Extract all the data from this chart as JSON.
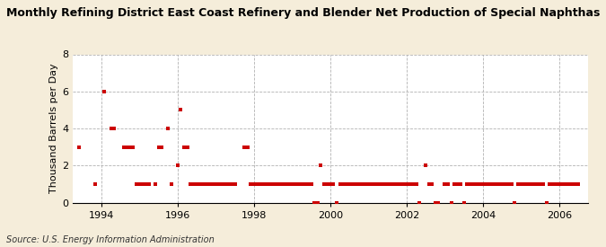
{
  "title": "Monthly Refining District East Coast Refinery and Blender Net Production of Special Naphthas",
  "ylabel": "Thousand Barrels per Day",
  "source": "Source: U.S. Energy Information Administration",
  "background_color": "#f5edda",
  "plot_bg_color": "#ffffff",
  "marker_color": "#cc0000",
  "marker_size": 5,
  "ylim": [
    0,
    8
  ],
  "yticks": [
    0,
    2,
    4,
    6,
    8
  ],
  "xlim_start": 1993.25,
  "xlim_end": 2006.75,
  "xticks": [
    1994,
    1996,
    1998,
    2000,
    2002,
    2004,
    2006
  ],
  "data_points": [
    [
      1993.42,
      3
    ],
    [
      1993.83,
      1
    ],
    [
      1994.08,
      6
    ],
    [
      1994.25,
      4
    ],
    [
      1994.33,
      4
    ],
    [
      1994.58,
      3
    ],
    [
      1994.67,
      3
    ],
    [
      1994.75,
      3
    ],
    [
      1994.83,
      3
    ],
    [
      1994.92,
      1
    ],
    [
      1995.0,
      1
    ],
    [
      1995.08,
      1
    ],
    [
      1995.17,
      1
    ],
    [
      1995.25,
      1
    ],
    [
      1995.42,
      1
    ],
    [
      1995.5,
      3
    ],
    [
      1995.58,
      3
    ],
    [
      1995.75,
      4
    ],
    [
      1995.83,
      1
    ],
    [
      1996.0,
      2
    ],
    [
      1996.08,
      5
    ],
    [
      1996.17,
      3
    ],
    [
      1996.25,
      3
    ],
    [
      1996.33,
      1
    ],
    [
      1996.42,
      1
    ],
    [
      1996.5,
      1
    ],
    [
      1996.58,
      1
    ],
    [
      1996.67,
      1
    ],
    [
      1996.75,
      1
    ],
    [
      1996.83,
      1
    ],
    [
      1996.92,
      1
    ],
    [
      1997.0,
      1
    ],
    [
      1997.08,
      1
    ],
    [
      1997.17,
      1
    ],
    [
      1997.25,
      1
    ],
    [
      1997.33,
      1
    ],
    [
      1997.42,
      1
    ],
    [
      1997.5,
      1
    ],
    [
      1997.75,
      3
    ],
    [
      1997.83,
      3
    ],
    [
      1997.92,
      1
    ],
    [
      1998.0,
      1
    ],
    [
      1998.08,
      1
    ],
    [
      1998.17,
      1
    ],
    [
      1998.25,
      1
    ],
    [
      1998.33,
      1
    ],
    [
      1998.42,
      1
    ],
    [
      1998.5,
      1
    ],
    [
      1998.58,
      1
    ],
    [
      1998.67,
      1
    ],
    [
      1998.75,
      1
    ],
    [
      1998.83,
      1
    ],
    [
      1998.92,
      1
    ],
    [
      1999.0,
      1
    ],
    [
      1999.08,
      1
    ],
    [
      1999.17,
      1
    ],
    [
      1999.25,
      1
    ],
    [
      1999.33,
      1
    ],
    [
      1999.42,
      1
    ],
    [
      1999.5,
      1
    ],
    [
      1999.58,
      0
    ],
    [
      1999.67,
      0
    ],
    [
      1999.75,
      2
    ],
    [
      1999.83,
      1
    ],
    [
      1999.92,
      1
    ],
    [
      2000.0,
      1
    ],
    [
      2000.08,
      1
    ],
    [
      2000.17,
      0
    ],
    [
      2000.25,
      1
    ],
    [
      2000.33,
      1
    ],
    [
      2000.42,
      1
    ],
    [
      2000.5,
      1
    ],
    [
      2000.58,
      1
    ],
    [
      2000.67,
      1
    ],
    [
      2000.75,
      1
    ],
    [
      2000.83,
      1
    ],
    [
      2000.92,
      1
    ],
    [
      2001.0,
      1
    ],
    [
      2001.08,
      1
    ],
    [
      2001.17,
      1
    ],
    [
      2001.25,
      1
    ],
    [
      2001.33,
      1
    ],
    [
      2001.42,
      1
    ],
    [
      2001.5,
      1
    ],
    [
      2001.58,
      1
    ],
    [
      2001.67,
      1
    ],
    [
      2001.75,
      1
    ],
    [
      2001.83,
      1
    ],
    [
      2001.92,
      1
    ],
    [
      2002.0,
      1
    ],
    [
      2002.08,
      1
    ],
    [
      2002.17,
      1
    ],
    [
      2002.25,
      1
    ],
    [
      2002.33,
      0
    ],
    [
      2002.5,
      2
    ],
    [
      2002.58,
      1
    ],
    [
      2002.67,
      1
    ],
    [
      2002.75,
      0
    ],
    [
      2002.83,
      0
    ],
    [
      2003.0,
      1
    ],
    [
      2003.08,
      1
    ],
    [
      2003.17,
      0
    ],
    [
      2003.25,
      1
    ],
    [
      2003.33,
      1
    ],
    [
      2003.42,
      1
    ],
    [
      2003.5,
      0
    ],
    [
      2003.58,
      1
    ],
    [
      2003.67,
      1
    ],
    [
      2003.75,
      1
    ],
    [
      2003.83,
      1
    ],
    [
      2003.92,
      1
    ],
    [
      2004.0,
      1
    ],
    [
      2004.08,
      1
    ],
    [
      2004.17,
      1
    ],
    [
      2004.25,
      1
    ],
    [
      2004.33,
      1
    ],
    [
      2004.42,
      1
    ],
    [
      2004.5,
      1
    ],
    [
      2004.58,
      1
    ],
    [
      2004.67,
      1
    ],
    [
      2004.75,
      1
    ],
    [
      2004.83,
      0
    ],
    [
      2004.92,
      1
    ],
    [
      2005.0,
      1
    ],
    [
      2005.08,
      1
    ],
    [
      2005.17,
      1
    ],
    [
      2005.25,
      1
    ],
    [
      2005.33,
      1
    ],
    [
      2005.42,
      1
    ],
    [
      2005.5,
      1
    ],
    [
      2005.58,
      1
    ],
    [
      2005.67,
      0
    ],
    [
      2005.75,
      1
    ],
    [
      2005.83,
      1
    ],
    [
      2005.92,
      1
    ],
    [
      2006.0,
      1
    ],
    [
      2006.08,
      1
    ],
    [
      2006.17,
      1
    ],
    [
      2006.25,
      1
    ],
    [
      2006.33,
      1
    ],
    [
      2006.42,
      1
    ],
    [
      2006.5,
      1
    ]
  ],
  "title_fontsize": 9,
  "tick_fontsize": 8,
  "ylabel_fontsize": 8,
  "source_fontsize": 7
}
